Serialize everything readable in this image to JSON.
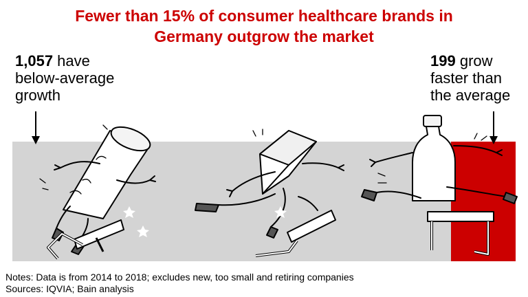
{
  "title": {
    "line1": "Fewer than 15% of consumer healthcare brands in",
    "line2": "Germany outgrow the market"
  },
  "callout_left": {
    "number": "1,057",
    "line1_rest": " have",
    "line2": "below-average",
    "line3": "growth"
  },
  "callout_right": {
    "number": "199",
    "line1_rest": " grow",
    "line2": "faster than",
    "line3": "the average"
  },
  "notes": {
    "line1": "Notes: Data is from 2014 to 2018; excludes new, too small and retiring companies",
    "line2": "Sources: IQVIA; Bain analysis"
  },
  "colors": {
    "accent": "#cc0000",
    "band": "#d4d4d4"
  },
  "icons": [
    "down-arrow-icon",
    "tube-character-icon",
    "box-character-icon",
    "bottle-character-icon",
    "hurdle-icon",
    "star-icon"
  ]
}
